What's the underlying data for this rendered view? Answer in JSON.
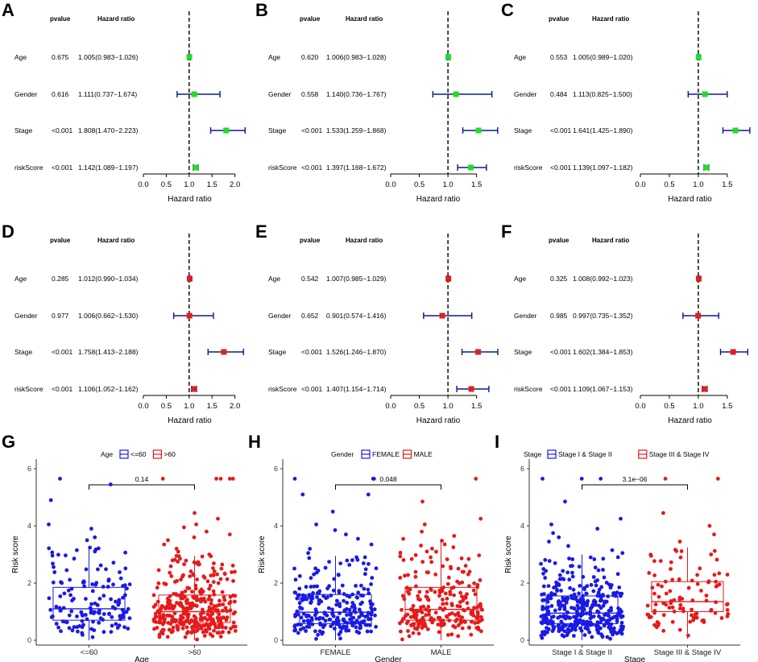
{
  "figure": {
    "forest_headers": {
      "pvalue": "pvalue",
      "hr": "Hazard ratio"
    },
    "forest_xlabel": "Hazard ratio",
    "box_ylabel": "Risk score"
  },
  "chart_data": [
    {
      "type": "forest",
      "letter": "A",
      "color": "#22dd22",
      "xlim": [
        0,
        2.2
      ],
      "ticks": [
        "0.0",
        "0.5",
        "1.0",
        "1.5",
        "2.0"
      ],
      "tick_values": [
        0,
        0.5,
        1.0,
        1.5,
        2.0
      ],
      "rows": [
        {
          "label": "Age",
          "p": "0.675",
          "sig": false,
          "hr_text": "1.005(0.983−1.026)",
          "hr": 1.005,
          "lo": 0.983,
          "hi": 1.026
        },
        {
          "label": "Gender",
          "p": "0.616",
          "sig": false,
          "hr_text": "1.111(0.737−1.674)",
          "hr": 1.111,
          "lo": 0.737,
          "hi": 1.674
        },
        {
          "label": "Stage",
          "p": "<0.001",
          "sig": true,
          "hr_text": "1.808(1.470−2.223)",
          "hr": 1.808,
          "lo": 1.47,
          "hi": 2.223
        },
        {
          "label": "riskScore",
          "p": "<0.001",
          "sig": true,
          "hr_text": "1.142(1.089−1.197)",
          "hr": 1.142,
          "lo": 1.089,
          "hi": 1.197
        }
      ]
    },
    {
      "type": "forest",
      "letter": "B",
      "color": "#22dd22",
      "xlim": [
        0,
        1.8
      ],
      "ticks": [
        "0.0",
        "0.5",
        "1.0",
        "1.5"
      ],
      "tick_values": [
        0,
        0.5,
        1.0,
        1.5
      ],
      "rows": [
        {
          "label": "Age",
          "p": "0.620",
          "sig": false,
          "hr_text": "1.006(0.983−1.028)",
          "hr": 1.006,
          "lo": 0.983,
          "hi": 1.028
        },
        {
          "label": "Gender",
          "p": "0.558",
          "sig": false,
          "hr_text": "1.140(0.736−1.767)",
          "hr": 1.14,
          "lo": 0.736,
          "hi": 1.767
        },
        {
          "label": "Stage",
          "p": "<0.001",
          "sig": true,
          "hr_text": "1.533(1.259−1.868)",
          "hr": 1.533,
          "lo": 1.259,
          "hi": 1.868
        },
        {
          "label": "riskScore",
          "p": "<0.001",
          "sig": true,
          "hr_text": "1.397(1.168−1.672)",
          "hr": 1.397,
          "lo": 1.168,
          "hi": 1.672
        }
      ]
    },
    {
      "type": "forest",
      "letter": "C",
      "color": "#22dd22",
      "xlim": [
        0,
        1.85
      ],
      "ticks": [
        "0.0",
        "0.5",
        "1.0",
        "1.5"
      ],
      "tick_values": [
        0,
        0.5,
        1.0,
        1.5
      ],
      "rows": [
        {
          "label": "Age",
          "p": "0.553",
          "sig": false,
          "hr_text": "1.005(0.989−1.020)",
          "hr": 1.005,
          "lo": 0.989,
          "hi": 1.02
        },
        {
          "label": "Gender",
          "p": "0.484",
          "sig": false,
          "hr_text": "1.113(0.825−1.500)",
          "hr": 1.113,
          "lo": 0.825,
          "hi": 1.5
        },
        {
          "label": "Stage",
          "p": "<0.001",
          "sig": true,
          "hr_text": "1.641(1.425−1.890)",
          "hr": 1.641,
          "lo": 1.425,
          "hi": 1.89
        },
        {
          "label": "riskScore",
          "p": "<0.001",
          "sig": true,
          "hr_text": "1.139(1.097−1.182)",
          "hr": 1.139,
          "lo": 1.097,
          "hi": 1.182
        }
      ]
    },
    {
      "type": "forest",
      "letter": "D",
      "color": "#e02020",
      "xlim": [
        0,
        2.2
      ],
      "ticks": [
        "0.0",
        "0.5",
        "1.0",
        "1.5",
        "2.0"
      ],
      "tick_values": [
        0,
        0.5,
        1.0,
        1.5,
        2.0
      ],
      "rows": [
        {
          "label": "Age",
          "p": "0.285",
          "sig": false,
          "hr_text": "1.012(0.990−1.034)",
          "hr": 1.012,
          "lo": 0.99,
          "hi": 1.034
        },
        {
          "label": "Gender",
          "p": "0.977",
          "sig": false,
          "hr_text": "1.006(0.662−1.530)",
          "hr": 1.006,
          "lo": 0.662,
          "hi": 1.53
        },
        {
          "label": "Stage",
          "p": "<0.001",
          "sig": true,
          "hr_text": "1.758(1.413−2.188)",
          "hr": 1.758,
          "lo": 1.413,
          "hi": 2.188
        },
        {
          "label": "riskScore",
          "p": "<0.001",
          "sig": true,
          "hr_text": "1.106(1.052−1.162)",
          "hr": 1.106,
          "lo": 1.052,
          "hi": 1.162
        }
      ]
    },
    {
      "type": "forest",
      "letter": "E",
      "color": "#e02020",
      "xlim": [
        0,
        1.8
      ],
      "ticks": [
        "0.0",
        "0.5",
        "1.0",
        "1.5"
      ],
      "tick_values": [
        0,
        0.5,
        1.0,
        1.5
      ],
      "rows": [
        {
          "label": "Age",
          "p": "0.542",
          "sig": false,
          "hr_text": "1.007(0.985−1.029)",
          "hr": 1.007,
          "lo": 0.985,
          "hi": 1.029
        },
        {
          "label": "Gender",
          "p": "0.652",
          "sig": false,
          "hr_text": "0.901(0.574−1.416)",
          "hr": 0.901,
          "lo": 0.574,
          "hi": 1.416
        },
        {
          "label": "Stage",
          "p": "<0.001",
          "sig": true,
          "hr_text": "1.526(1.246−1.870)",
          "hr": 1.526,
          "lo": 1.246,
          "hi": 1.87
        },
        {
          "label": "riskScore",
          "p": "<0.001",
          "sig": true,
          "hr_text": "1.407(1.154−1.714)",
          "hr": 1.407,
          "lo": 1.154,
          "hi": 1.714
        }
      ]
    },
    {
      "type": "forest",
      "letter": "F",
      "color": "#e02020",
      "xlim": [
        0,
        1.85
      ],
      "ticks": [
        "0.0",
        "0.5",
        "1.0",
        "1.5"
      ],
      "tick_values": [
        0,
        0.5,
        1.0,
        1.5
      ],
      "rows": [
        {
          "label": "Age",
          "p": "0.325",
          "sig": false,
          "hr_text": "1.008(0.992−1.023)",
          "hr": 1.008,
          "lo": 0.992,
          "hi": 1.023
        },
        {
          "label": "Gender",
          "p": "0.985",
          "sig": false,
          "hr_text": "0.997(0.735−1.352)",
          "hr": 0.997,
          "lo": 0.735,
          "hi": 1.352
        },
        {
          "label": "Stage",
          "p": "<0.001",
          "sig": true,
          "hr_text": "1.602(1.384−1.853)",
          "hr": 1.602,
          "lo": 1.384,
          "hi": 1.853
        },
        {
          "label": "riskScore",
          "p": "<0.001",
          "sig": true,
          "hr_text": "1.109(1.067−1.153)",
          "hr": 1.109,
          "lo": 1.067,
          "hi": 1.153
        }
      ]
    },
    {
      "type": "box",
      "letter": "G",
      "legend_title": "Age",
      "xlabel": "Age",
      "ylabel": "Risk score",
      "ylim": [
        0,
        6
      ],
      "yticks": [
        0,
        2,
        4,
        6
      ],
      "pvalue_label": "0.14",
      "groups": [
        {
          "name": "<=60",
          "color": "#1a1ae6",
          "q1": 0.7,
          "median": 1.1,
          "q3": 1.85,
          "wlo": 0.0,
          "whi": 3.25,
          "n": 140,
          "outliers": [
            3.5,
            3.6,
            3.9,
            4.05,
            4.9,
            5.45,
            5.65
          ]
        },
        {
          "name": ">60",
          "color": "#e61a1a",
          "q1": 0.62,
          "median": 1.0,
          "q3": 1.58,
          "wlo": 0.0,
          "whi": 2.95,
          "n": 330,
          "outliers": [
            3.0,
            3.1,
            3.2,
            3.35,
            3.5,
            3.6,
            3.7,
            3.8,
            3.95,
            4.05,
            4.25,
            4.45,
            5.65,
            5.65,
            5.65,
            5.65,
            5.65
          ]
        }
      ]
    },
    {
      "type": "box",
      "letter": "H",
      "legend_title": "Gender",
      "xlabel": "Gender",
      "ylabel": "Risk score",
      "ylim": [
        0,
        6
      ],
      "yticks": [
        0,
        2,
        4,
        6
      ],
      "pvalue_label": "0.048",
      "groups": [
        {
          "name": "FEMALE",
          "color": "#1a1ae6",
          "q1": 0.58,
          "median": 0.98,
          "q3": 1.6,
          "wlo": 0.0,
          "whi": 2.95,
          "n": 250,
          "outliers": [
            3.05,
            3.2,
            3.35,
            3.55,
            3.7,
            3.85,
            4.05,
            4.5,
            5.1,
            5.1,
            5.65,
            5.65,
            5.65
          ]
        },
        {
          "name": "MALE",
          "color": "#e61a1a",
          "q1": 0.7,
          "median": 1.08,
          "q3": 1.85,
          "wlo": 0.0,
          "whi": 3.55,
          "n": 230,
          "outliers": [
            3.65,
            3.8,
            4.05,
            4.25,
            4.85,
            5.65
          ]
        }
      ]
    },
    {
      "type": "box",
      "letter": "I",
      "legend_title": "Stage",
      "xlabel": "Stage",
      "ylabel": "Risk score",
      "ylim": [
        0,
        6
      ],
      "yticks": [
        0,
        2,
        4,
        6
      ],
      "pvalue_label": "3.1e−06",
      "groups": [
        {
          "name": "Stage I & Stage II",
          "color": "#1a1ae6",
          "q1": 0.58,
          "median": 0.95,
          "q3": 1.55,
          "wlo": 0.0,
          "whi": 3.0,
          "n": 370,
          "outliers": [
            3.05,
            3.15,
            3.3,
            3.45,
            3.6,
            3.75,
            3.9,
            4.05,
            4.25,
            4.85,
            5.65,
            5.65,
            5.65
          ]
        },
        {
          "name": "Stage III & Stage IV",
          "color": "#e61a1a",
          "q1": 1.0,
          "median": 1.35,
          "q3": 2.05,
          "wlo": 0.05,
          "whi": 3.25,
          "n": 100,
          "outliers": [
            3.45,
            3.7,
            4.0,
            4.45,
            5.65,
            5.65
          ]
        }
      ]
    }
  ]
}
